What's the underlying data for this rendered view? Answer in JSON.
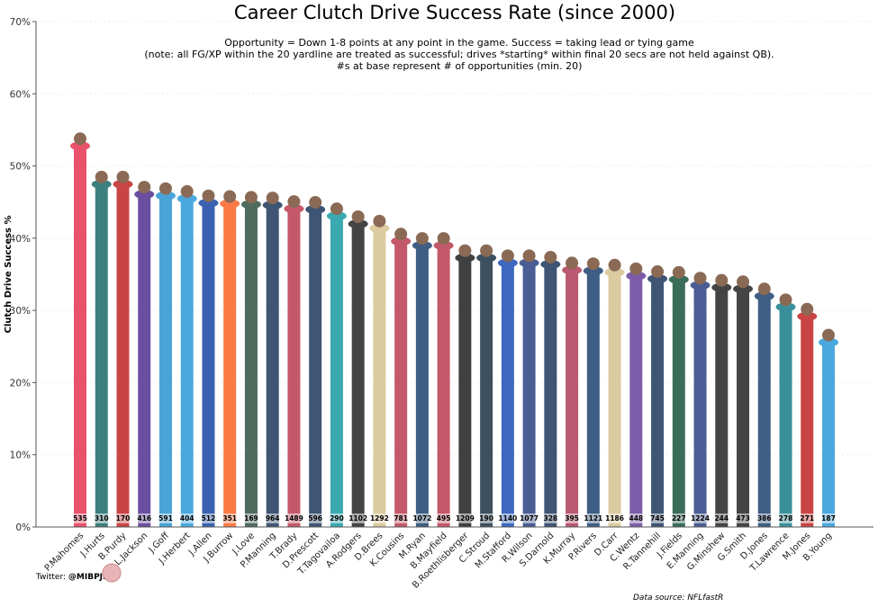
{
  "chart_data": {
    "type": "bar",
    "title": "Career Clutch Drive Success Rate (since 2000)",
    "subtitle": [
      "Opportunity = Down 1-8 points at any point in the game. Success = taking lead or tying game",
      "(note: all FG/XP within the 20 yardline are treated as successful; drives *starting* within final 20 secs are not held against QB).",
      "#s at base represent # of opportunities (min. 20)"
    ],
    "xlabel": "",
    "ylabel": "Clutch Drive Success %",
    "ylim": [
      0,
      70
    ],
    "yticks": [
      0,
      10,
      20,
      30,
      40,
      50,
      60,
      70
    ],
    "ytick_labels": [
      "0%",
      "10%",
      "20%",
      "30%",
      "40%",
      "50%",
      "60%",
      "70%"
    ],
    "grid": true,
    "categories": [
      "P.Mahomes",
      "J.Hurts",
      "B.Purdy",
      "L.Jackson",
      "J.Goff",
      "J.Herbert",
      "J.Allen",
      "J.Burrow",
      "J.Love",
      "P.Manning",
      "T.Brady",
      "D.Prescott",
      "T.Tagovailoa",
      "A.Rodgers",
      "D.Brees",
      "K.Cousins",
      "M.Ryan",
      "B.Mayfield",
      "B.Roethlisberger",
      "C.Stroud",
      "M.Stafford",
      "R.Wilson",
      "S.Darnold",
      "K.Murray",
      "P.Rivers",
      "D.Carr",
      "C.Wentz",
      "R.Tannehill",
      "J.Fields",
      "E.Manning",
      "G.Minshew",
      "G.Smith",
      "D.Jones",
      "T.Lawrence",
      "M.Jones",
      "B.Young"
    ],
    "values": [
      52.4,
      47.1,
      47.1,
      45.7,
      45.5,
      45.1,
      44.5,
      44.4,
      44.3,
      44.2,
      43.7,
      43.6,
      42.7,
      41.6,
      41.0,
      39.2,
      38.6,
      38.6,
      36.9,
      36.9,
      36.2,
      36.2,
      36.0,
      35.2,
      35.1,
      34.9,
      34.4,
      34.0,
      33.9,
      33.1,
      32.8,
      32.6,
      31.6,
      30.1,
      28.8,
      25.2
    ],
    "opportunities": [
      "535",
      "310",
      "170",
      "416",
      "591",
      "404",
      "512",
      "351",
      "169",
      "964",
      "1489",
      "596",
      "290",
      "1102",
      "1292",
      "781",
      "1072",
      "495",
      "1209",
      "190",
      "1140",
      "1077",
      "328",
      "395",
      "1121",
      "1186",
      "448",
      "745",
      "227",
      "1224",
      "244",
      "473",
      "386",
      "278",
      "271",
      "187"
    ],
    "colors": [
      "#e8536b",
      "#3d7f7f",
      "#c94545",
      "#6a4fa0",
      "#4aa3d6",
      "#4aa8de",
      "#3a62b0",
      "#fb7a45",
      "#4f6a5e",
      "#3f5574",
      "#c3596a",
      "#3f5574",
      "#3aaab0",
      "#444444",
      "#dccba0",
      "#c3596a",
      "#3f5e85",
      "#c3596a",
      "#404040",
      "#3d5060",
      "#3d68c0",
      "#4a5e95",
      "#3f5574",
      "#b95a72",
      "#3f5e85",
      "#dccba0",
      "#7c5ca8",
      "#3f5574",
      "#3b6e5a",
      "#4a5e95",
      "#444444",
      "#444444",
      "#3f5e85",
      "#3a909a",
      "#c94545",
      "#4aa8de"
    ]
  },
  "footer": {
    "twitter_label": "Twitter: ",
    "twitter_handle": "@MIBPJ2",
    "source": "Data source: NFLfastR"
  }
}
